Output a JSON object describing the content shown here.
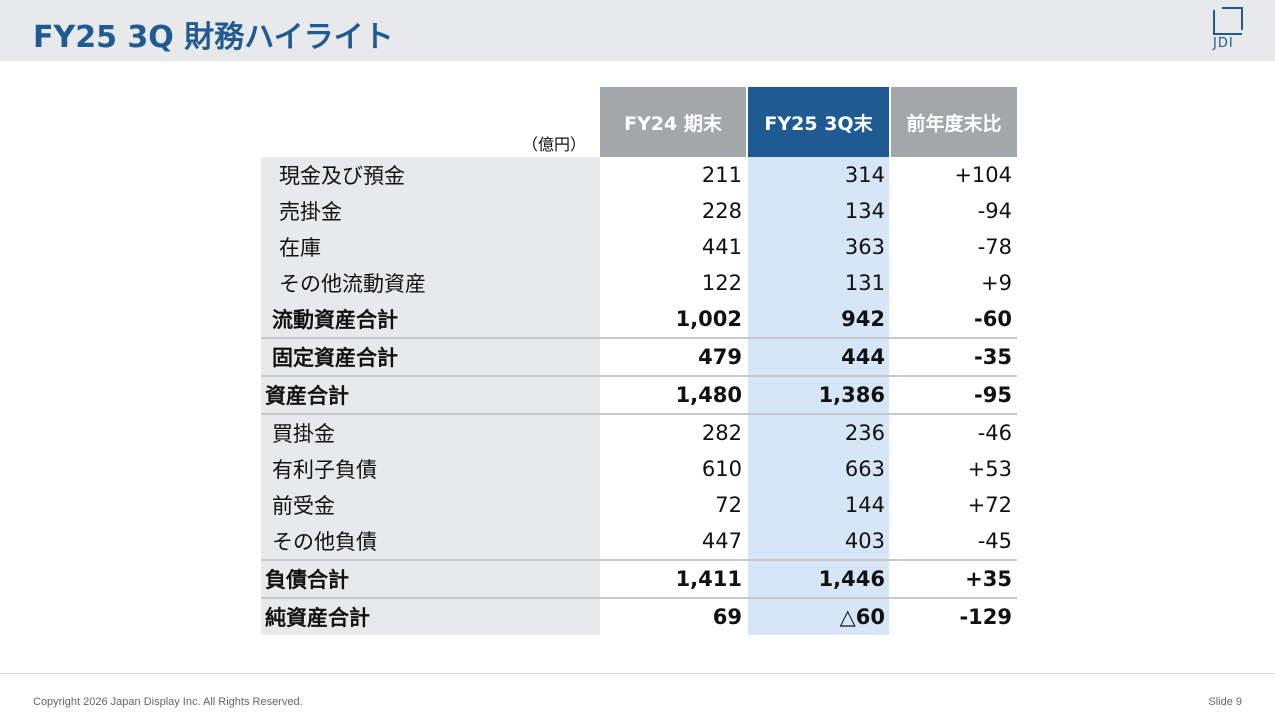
{
  "header": {
    "title": "FY25 3Q 財務ハイライト",
    "logo_text": "JDI",
    "accent_color": "#1f5a92"
  },
  "table": {
    "unit": "（億円）",
    "columns": [
      "FY24 期末",
      "FY25 3Q末",
      "前年度末比"
    ],
    "rows": [
      {
        "label": "現金及び預金",
        "fy24": "211",
        "fy25": "314",
        "diff": "+104",
        "level": "item"
      },
      {
        "label": "売掛金",
        "fy24": "228",
        "fy25": "134",
        "diff": "-94",
        "level": "item"
      },
      {
        "label": "在庫",
        "fy24": "441",
        "fy25": "363",
        "diff": "-78",
        "level": "item"
      },
      {
        "label": "その他流動資産",
        "fy24": "122",
        "fy25": "131",
        "diff": "+9",
        "level": "item"
      },
      {
        "label": "流動資産合計",
        "fy24": "1,002",
        "fy25": "942",
        "diff": "-60",
        "level": "subtotal"
      },
      {
        "label": "固定資産合計",
        "fy24": "479",
        "fy25": "444",
        "diff": "-35",
        "level": "subtotal"
      },
      {
        "label": "資産合計",
        "fy24": "1,480",
        "fy25": "1,386",
        "diff": "-95",
        "level": "total"
      },
      {
        "label": "買掛金",
        "fy24": "282",
        "fy25": "236",
        "diff": "-46",
        "level": "liab-item"
      },
      {
        "label": "有利子負債",
        "fy24": "610",
        "fy25": "663",
        "diff": "+53",
        "level": "liab-item"
      },
      {
        "label": "前受金",
        "fy24": "72",
        "fy25": "144",
        "diff": "+72",
        "level": "liab-item"
      },
      {
        "label": "その他負債",
        "fy24": "447",
        "fy25": "403",
        "diff": "-45",
        "level": "liab-item"
      },
      {
        "label": "負債合計",
        "fy24": "1,411",
        "fy25": "1,446",
        "diff": "+35",
        "level": "total"
      },
      {
        "label": "純資産合計",
        "fy24": "69",
        "fy25": "△60",
        "diff": "-129",
        "level": "total"
      }
    ]
  },
  "footer": {
    "copyright": "Copyright 2026 Japan Display Inc. All Rights Reserved.",
    "slide": "Slide 9"
  }
}
